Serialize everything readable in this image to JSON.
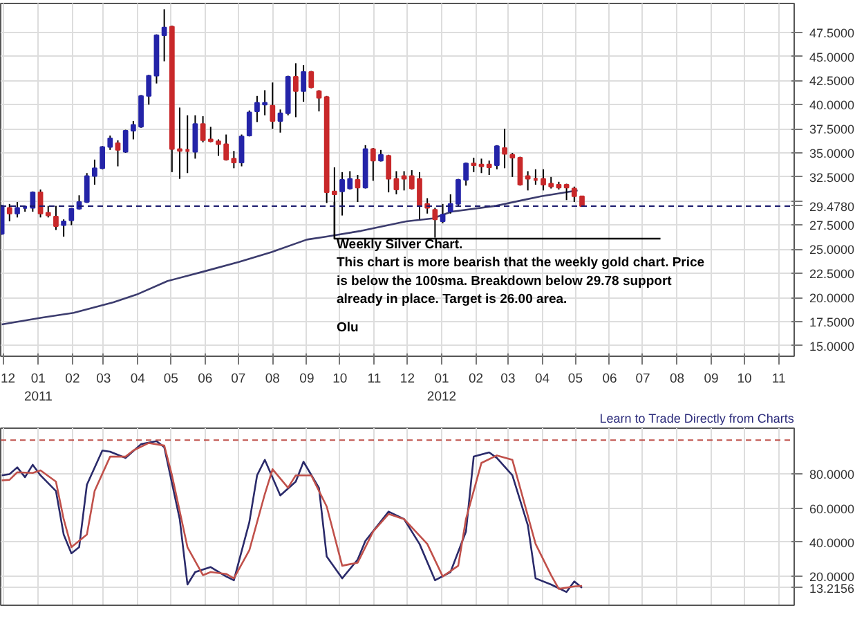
{
  "chart_data": [
    {
      "type": "candlestick",
      "x": [
        "2010-11-29",
        "2010-12-06",
        "2010-12-13",
        "2010-12-20",
        "2010-12-27",
        "2011-01-03",
        "2011-01-10",
        "2011-01-17",
        "2011-01-24",
        "2011-01-31",
        "2011-02-07",
        "2011-02-14",
        "2011-02-21",
        "2011-02-28",
        "2011-03-07",
        "2011-03-14",
        "2011-03-21",
        "2011-03-28",
        "2011-04-04",
        "2011-04-11",
        "2011-04-18",
        "2011-04-25",
        "2011-05-02",
        "2011-05-09",
        "2011-05-16",
        "2011-05-23",
        "2011-05-30",
        "2011-06-06",
        "2011-06-13",
        "2011-06-20",
        "2011-06-27",
        "2011-07-04",
        "2011-07-11",
        "2011-07-18",
        "2011-07-25",
        "2011-08-01",
        "2011-08-08",
        "2011-08-15",
        "2011-08-22",
        "2011-08-29",
        "2011-09-05",
        "2011-09-12",
        "2011-09-19",
        "2011-09-26",
        "2011-10-03",
        "2011-10-10",
        "2011-10-17",
        "2011-10-24",
        "2011-10-31",
        "2011-11-07",
        "2011-11-14",
        "2011-11-21",
        "2011-11-28",
        "2011-12-05",
        "2011-12-12",
        "2011-12-19",
        "2011-12-26",
        "2012-01-02",
        "2012-01-09",
        "2012-01-16",
        "2012-01-23",
        "2012-01-30",
        "2012-02-06",
        "2012-02-13",
        "2012-02-20",
        "2012-02-27",
        "2012-03-05",
        "2012-03-12",
        "2012-03-19",
        "2012-03-26",
        "2012-04-02",
        "2012-04-09",
        "2012-04-16",
        "2012-04-23",
        "2012-04-30",
        "2012-05-07"
      ],
      "series": [
        {
          "type": "candlestick",
          "ohlc": [
            [
              26.6,
              29.6,
              26.5,
              29.5
            ],
            [
              29.3,
              29.7,
              27.9,
              28.7
            ],
            [
              28.7,
              29.9,
              28.3,
              29.3
            ],
            [
              29.3,
              29.5,
              28.9,
              29.4
            ],
            [
              29.3,
              31.0,
              28.9,
              30.9
            ],
            [
              30.9,
              31.2,
              28.3,
              28.7
            ],
            [
              28.8,
              29.5,
              28.3,
              28.5
            ],
            [
              28.4,
              29.5,
              27.0,
              27.4
            ],
            [
              27.5,
              28.1,
              26.3,
              27.9
            ],
            [
              28.0,
              29.3,
              27.5,
              29.2
            ],
            [
              29.2,
              30.6,
              29.1,
              29.9
            ],
            [
              29.9,
              32.9,
              29.8,
              32.6
            ],
            [
              32.6,
              34.3,
              31.7,
              33.4
            ],
            [
              33.4,
              35.7,
              33.3,
              35.6
            ],
            [
              35.6,
              36.8,
              35.3,
              36.5
            ],
            [
              36.0,
              36.3,
              33.6,
              35.3
            ],
            [
              35.1,
              37.4,
              35.0,
              37.3
            ],
            [
              37.3,
              38.3,
              36.4,
              37.9
            ],
            [
              37.7,
              41.0,
              37.6,
              40.9
            ],
            [
              40.9,
              43.1,
              40.0,
              43.0
            ],
            [
              43.0,
              47.3,
              42.2,
              47.2
            ],
            [
              47.2,
              49.9,
              44.5,
              48.0
            ],
            [
              48.1,
              48.2,
              33.0,
              35.4
            ],
            [
              35.4,
              39.7,
              32.3,
              35.2
            ],
            [
              35.3,
              38.9,
              32.9,
              35.2
            ],
            [
              35.1,
              38.9,
              34.4,
              38.0
            ],
            [
              38.0,
              38.8,
              36.1,
              36.3
            ],
            [
              36.4,
              37.7,
              36.1,
              36.2
            ],
            [
              36.2,
              36.4,
              34.7,
              35.9
            ],
            [
              35.9,
              36.9,
              34.2,
              34.3
            ],
            [
              34.4,
              35.2,
              33.4,
              34.0
            ],
            [
              34.0,
              36.9,
              33.6,
              36.7
            ],
            [
              36.8,
              39.4,
              36.7,
              39.2
            ],
            [
              39.3,
              40.9,
              38.2,
              40.2
            ],
            [
              40.0,
              41.5,
              38.9,
              40.2
            ],
            [
              39.9,
              42.3,
              37.5,
              38.3
            ],
            [
              38.3,
              39.5,
              37.1,
              39.1
            ],
            [
              39.1,
              43.0,
              38.9,
              42.9
            ],
            [
              42.9,
              44.3,
              38.7,
              41.4
            ],
            [
              41.4,
              44.1,
              40.3,
              43.4
            ],
            [
              43.4,
              43.5,
              41.7,
              41.8
            ],
            [
              41.4,
              41.5,
              39.3,
              40.7
            ],
            [
              40.8,
              40.9,
              29.8,
              30.9
            ],
            [
              31.0,
              33.5,
              29.9,
              30.7
            ],
            [
              31.0,
              33.0,
              28.5,
              32.2
            ],
            [
              31.3,
              33.1,
              31.2,
              32.3
            ],
            [
              32.2,
              32.7,
              29.9,
              31.4
            ],
            [
              31.4,
              35.8,
              31.3,
              35.4
            ],
            [
              35.4,
              35.5,
              32.1,
              34.2
            ],
            [
              34.2,
              35.3,
              34.1,
              34.8
            ],
            [
              34.7,
              34.8,
              30.9,
              32.3
            ],
            [
              32.3,
              33.1,
              30.7,
              31.2
            ],
            [
              32.6,
              33.1,
              31.1,
              32.3
            ],
            [
              32.6,
              33.2,
              31.2,
              31.3
            ],
            [
              32.3,
              33.0,
              28.1,
              29.5
            ],
            [
              29.7,
              30.3,
              28.7,
              29.3
            ],
            [
              29.1,
              29.3,
              26.2,
              28.1
            ],
            [
              27.9,
              29.7,
              27.7,
              28.6
            ],
            [
              28.9,
              30.7,
              28.7,
              29.7
            ],
            [
              29.7,
              32.3,
              29.5,
              32.2
            ],
            [
              32.2,
              34.0,
              31.6,
              33.9
            ],
            [
              33.9,
              34.5,
              33.0,
              33.7
            ],
            [
              33.8,
              34.4,
              32.9,
              33.6
            ],
            [
              33.8,
              34.2,
              32.7,
              33.5
            ],
            [
              33.7,
              35.8,
              33.3,
              35.7
            ],
            [
              35.5,
              37.5,
              33.4,
              34.9
            ],
            [
              34.8,
              35.0,
              32.5,
              34.5
            ],
            [
              34.5,
              34.6,
              31.6,
              31.7
            ],
            [
              32.6,
              33.1,
              31.1,
              32.3
            ],
            [
              32.3,
              33.3,
              31.7,
              32.2
            ],
            [
              32.3,
              33.3,
              31.1,
              31.7
            ],
            [
              31.8,
              32.5,
              31.3,
              31.5
            ],
            [
              31.7,
              32.0,
              31.2,
              31.4
            ],
            [
              31.7,
              31.8,
              30.1,
              31.4
            ],
            [
              31.3,
              31.5,
              29.9,
              30.5
            ],
            [
              30.5,
              30.5,
              29.4,
              29.478
            ]
          ],
          "colors": [
            "#2424a8",
            "#c8282a",
            "#2424a8",
            "#2424a8",
            "#2424a8",
            "#c8282a",
            "#c8282a",
            "#c8282a",
            "#2424a8",
            "#2424a8",
            "#2424a8",
            "#2424a8",
            "#2424a8",
            "#2424a8",
            "#2424a8",
            "#c8282a",
            "#2424a8",
            "#2424a8",
            "#2424a8",
            "#2424a8",
            "#2424a8",
            "#2424a8",
            "#c8282a",
            "#c8282a",
            "#c8282a",
            "#2424a8",
            "#c8282a",
            "#c8282a",
            "#c8282a",
            "#c8282a",
            "#c8282a",
            "#2424a8",
            "#2424a8",
            "#2424a8",
            "#2424a8",
            "#c8282a",
            "#2424a8",
            "#2424a8",
            "#c8282a",
            "#2424a8",
            "#c8282a",
            "#c8282a",
            "#c8282a",
            "#c8282a",
            "#2424a8",
            "#2424a8",
            "#c8282a",
            "#2424a8",
            "#c8282a",
            "#2424a8",
            "#c8282a",
            "#c8282a",
            "#c8282a",
            "#c8282a",
            "#c8282a",
            "#c8282a",
            "#c8282a",
            "#2424a8",
            "#2424a8",
            "#2424a8",
            "#2424a8",
            "#c8282a",
            "#c8282a",
            "#c8282a",
            "#2424a8",
            "#c8282a",
            "#c8282a",
            "#c8282a",
            "#c8282a",
            "#c8282a",
            "#c8282a",
            "#c8282a",
            "#c8282a",
            "#c8282a",
            "#c8282a",
            "#c8282a"
          ]
        },
        {
          "type": "line",
          "color": "#3c3c6e",
          "x": [
            "2010-11-29",
            "2011-01-04",
            "2011-02-02",
            "2011-03-10",
            "2011-03-31",
            "2011-04-28",
            "2011-05-31",
            "2011-07-02",
            "2011-07-31",
            "2011-09-01",
            "2011-09-18",
            "2011-10-20",
            "2011-11-30",
            "2011-12-24",
            "2012-01-10",
            "2012-02-19",
            "2012-03-31",
            "2012-05-03"
          ],
          "values": [
            17.2,
            17.9,
            18.4,
            19.5,
            20.3,
            21.7,
            22.7,
            23.7,
            24.7,
            26.0,
            26.3,
            26.9,
            27.9,
            28.2,
            28.9,
            29.5,
            30.5,
            31.1
          ]
        },
        {
          "type": "line",
          "color": "#000000",
          "x": [
            "2011-09-26",
            "2011-09-26",
            "2012-07-17"
          ],
          "values": [
            29.9,
            26.1,
            26.1
          ]
        }
      ],
      "xlim": [
        "2010-11-28",
        "2012-11-15"
      ],
      "xticks": [
        {
          "value": "2010-12-01",
          "label": "12"
        },
        {
          "value": "2011-01-01",
          "label": "01\n2011"
        },
        {
          "value": "2011-02-01",
          "label": "02"
        },
        {
          "value": "2011-03-01",
          "label": "03"
        },
        {
          "value": "2011-04-01",
          "label": "04"
        },
        {
          "value": "2011-05-01",
          "label": "05"
        },
        {
          "value": "2011-06-01",
          "label": "06"
        },
        {
          "value": "2011-07-01",
          "label": "07"
        },
        {
          "value": "2011-08-01",
          "label": "08"
        },
        {
          "value": "2011-09-01",
          "label": "09"
        },
        {
          "value": "2011-10-01",
          "label": "10"
        },
        {
          "value": "2011-11-01",
          "label": "11"
        },
        {
          "value": "2011-12-01",
          "label": "12"
        },
        {
          "value": "2012-01-01",
          "label": "01\n2012"
        },
        {
          "value": "2012-02-01",
          "label": "02"
        },
        {
          "value": "2012-03-01",
          "label": "03"
        },
        {
          "value": "2012-04-01",
          "label": "04"
        },
        {
          "value": "2012-05-01",
          "label": "05"
        },
        {
          "value": "2012-06-01",
          "label": "06"
        },
        {
          "value": "2012-07-01",
          "label": "07"
        },
        {
          "value": "2012-08-01",
          "label": "08"
        },
        {
          "value": "2012-09-01",
          "label": "09"
        },
        {
          "value": "2012-10-01",
          "label": "10"
        },
        {
          "value": "2012-11-01",
          "label": "11"
        }
      ],
      "ylim": [
        13.9,
        50.5
      ],
      "yticks": [
        {
          "value": 15,
          "label": "15.0000"
        },
        {
          "value": 17.5,
          "label": "17.5000"
        },
        {
          "value": 20,
          "label": "20.0000"
        },
        {
          "value": 22.5,
          "label": "22.5000"
        },
        {
          "value": 25,
          "label": "25.0000"
        },
        {
          "value": 27.5,
          "label": "27.5000"
        },
        {
          "value": 30,
          "label": null
        },
        {
          "value": 32.5,
          "label": "32.5000"
        },
        {
          "value": 35,
          "label": "35.0000"
        },
        {
          "value": 37.5,
          "label": "37.5000"
        },
        {
          "value": 40,
          "label": "40.0000"
        },
        {
          "value": 42.5,
          "label": "42.5000"
        },
        {
          "value": 45,
          "label": "45.0000"
        },
        {
          "value": 47.5,
          "label": "47.5000"
        }
      ],
      "grid": true,
      "ref_lines": [
        {
          "axis": "y",
          "value": 29.478,
          "label": "29.4780",
          "color": "#1a1a6e",
          "line_style": "dashed"
        }
      ],
      "annotations": [
        "Weekly Silver Chart.\nThis chart is more bearish that the weekly gold chart. Price\nis below the 100sma. Breakdown below 29.78 support\nalready in place. Target is 26.00 area.",
        "Olu",
        "Learn to Trade Directly from Charts"
      ]
    },
    {
      "type": "line",
      "series": [
        {
          "color": "#2a2a6a",
          "x": [
            "2010-11-29",
            "2010-12-06",
            "2010-12-13",
            "2010-12-20",
            "2010-12-27",
            "2011-01-03",
            "2011-01-17",
            "2011-01-24",
            "2011-01-31",
            "2011-02-07",
            "2011-02-14",
            "2011-02-28",
            "2011-03-07",
            "2011-03-21",
            "2011-04-04",
            "2011-04-18",
            "2011-04-25",
            "2011-05-09",
            "2011-05-16",
            "2011-05-23",
            "2011-06-06",
            "2011-06-20",
            "2011-06-27",
            "2011-07-11",
            "2011-07-18",
            "2011-07-25",
            "2011-08-08",
            "2011-08-22",
            "2011-08-29",
            "2011-09-12",
            "2011-09-19",
            "2011-10-03",
            "2011-10-17",
            "2011-10-24",
            "2011-11-14",
            "2011-11-28",
            "2011-12-12",
            "2011-12-26",
            "2012-01-09",
            "2012-01-23",
            "2012-01-30",
            "2012-02-13",
            "2012-02-20",
            "2012-03-05",
            "2012-03-19",
            "2012-03-26",
            "2012-04-09",
            "2012-04-23",
            "2012-04-30",
            "2012-05-07"
          ],
          "values": [
            79.3,
            80,
            84,
            78.2,
            85.5,
            79.3,
            70.1,
            44.5,
            33.5,
            37.1,
            73.8,
            93.9,
            93.2,
            89.5,
            97.6,
            99.4,
            95.8,
            53.6,
            15.2,
            22.5,
            25.4,
            19.9,
            17.7,
            51.8,
            79.3,
            88.4,
            67.5,
            75.6,
            87.3,
            71.9,
            31.6,
            18.8,
            29.8,
            40.8,
            58.0,
            53.6,
            39.0,
            17.7,
            22.5,
            46.3,
            90.3,
            92.8,
            89.5,
            79.3,
            50.0,
            18.8,
            15.2,
            10.8,
            17.0,
            13.2156
          ]
        },
        {
          "color": "#c0504a",
          "x": [
            "2010-11-29",
            "2010-12-06",
            "2010-12-13",
            "2010-12-27",
            "2011-01-03",
            "2011-01-17",
            "2011-01-24",
            "2011-01-31",
            "2011-02-14",
            "2011-02-21",
            "2011-03-07",
            "2011-03-21",
            "2011-03-28",
            "2011-04-11",
            "2011-04-25",
            "2011-05-02",
            "2011-05-16",
            "2011-05-30",
            "2011-06-06",
            "2011-06-20",
            "2011-06-27",
            "2011-07-11",
            "2011-07-25",
            "2011-08-01",
            "2011-08-15",
            "2011-08-22",
            "2011-09-05",
            "2011-09-19",
            "2011-10-03",
            "2011-10-17",
            "2011-10-31",
            "2011-11-14",
            "2011-11-28",
            "2011-12-19",
            "2012-01-02",
            "2012-01-16",
            "2012-01-23",
            "2012-02-06",
            "2012-02-20",
            "2012-03-05",
            "2012-03-12",
            "2012-03-26",
            "2012-04-09",
            "2012-04-16",
            "2012-04-30",
            "2012-05-07"
          ],
          "values": [
            76.3,
            76.7,
            81.1,
            80.7,
            82.2,
            75.6,
            53.6,
            37.1,
            44.5,
            70.1,
            90.3,
            90.3,
            93.9,
            98.3,
            96.8,
            79.3,
            37.1,
            20.7,
            22.5,
            21.4,
            18.8,
            35.3,
            68.3,
            82.9,
            72.0,
            79.3,
            79.3,
            61.0,
            26.2,
            28.0,
            46.3,
            56.6,
            53.6,
            39.0,
            19.9,
            26.2,
            53.6,
            86.6,
            91.0,
            88.4,
            72.0,
            39.0,
            20.7,
            12.6,
            14.1,
            14.4
          ]
        }
      ],
      "xlim": [
        "2010-11-28",
        "2012-11-15"
      ],
      "xticks": [
        {
          "value": "2010-12-01",
          "label": null
        },
        {
          "value": "2011-01-01",
          "label": null
        },
        {
          "value": "2011-02-01",
          "label": null
        },
        {
          "value": "2011-03-01",
          "label": null
        },
        {
          "value": "2011-04-01",
          "label": null
        },
        {
          "value": "2011-05-01",
          "label": null
        },
        {
          "value": "2011-06-01",
          "label": null
        },
        {
          "value": "2011-07-01",
          "label": null
        },
        {
          "value": "2011-08-01",
          "label": null
        },
        {
          "value": "2011-09-01",
          "label": null
        },
        {
          "value": "2011-10-01",
          "label": null
        },
        {
          "value": "2011-11-01",
          "label": null
        },
        {
          "value": "2011-12-01",
          "label": null
        },
        {
          "value": "2012-01-01",
          "label": null
        },
        {
          "value": "2012-02-01",
          "label": null
        },
        {
          "value": "2012-03-01",
          "label": null
        },
        {
          "value": "2012-04-01",
          "label": null
        },
        {
          "value": "2012-05-01",
          "label": null
        },
        {
          "value": "2012-06-01",
          "label": null
        },
        {
          "value": "2012-07-01",
          "label": null
        },
        {
          "value": "2012-08-01",
          "label": null
        },
        {
          "value": "2012-09-01",
          "label": null
        },
        {
          "value": "2012-10-01",
          "label": null
        },
        {
          "value": "2012-11-01",
          "label": null
        }
      ],
      "ylim": [
        3,
        107
      ],
      "yticks": [
        {
          "value": 13.2156,
          "label": "13.2156"
        },
        {
          "value": 20,
          "label": "20.0000"
        },
        {
          "value": 40,
          "label": "40.0000"
        },
        {
          "value": 60,
          "label": "60.0000"
        },
        {
          "value": 80,
          "label": "80.0000"
        }
      ],
      "grid": true,
      "tick_labels": "y",
      "ref_lines": [
        {
          "axis": "y",
          "value": 100,
          "color": "#c0504a",
          "line_style": "dashed"
        }
      ]
    }
  ]
}
